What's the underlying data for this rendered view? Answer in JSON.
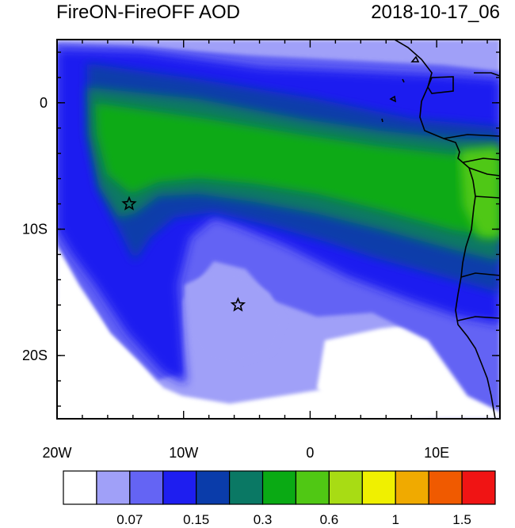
{
  "title_left": "FireON-FireOFF AOD",
  "title_right": "2018-10-17_06",
  "map": {
    "lon_range": [
      -20,
      15
    ],
    "lat_range": [
      -25,
      5
    ],
    "lon_ticks": [
      {
        "value": -20,
        "label": "20W"
      },
      {
        "value": -10,
        "label": "10W"
      },
      {
        "value": 0,
        "label": "0"
      },
      {
        "value": 10,
        "label": "10E"
      }
    ],
    "lat_ticks": [
      {
        "value": 0,
        "label": "0"
      },
      {
        "value": -10,
        "label": "10S"
      },
      {
        "value": -20,
        "label": "20S"
      }
    ],
    "markers": [
      {
        "name": "star-marker-north",
        "lon": -14.3,
        "lat": -8.0
      },
      {
        "name": "star-marker-south",
        "lon": -5.7,
        "lat": -16.0
      }
    ]
  },
  "colorbar": {
    "colors": [
      "#ffffff",
      "#a0a0f8",
      "#6464f4",
      "#1e1ef0",
      "#0a3caa",
      "#0a7864",
      "#0aaa14",
      "#50c814",
      "#a8dc14",
      "#f0f000",
      "#f0aa00",
      "#f05a00",
      "#f01414"
    ],
    "labels": [
      {
        "boundary": 2,
        "text": "0.07"
      },
      {
        "boundary": 4,
        "text": "0.15"
      },
      {
        "boundary": 6,
        "text": "0.3"
      },
      {
        "boundary": 8,
        "text": "0.6"
      },
      {
        "boundary": 10,
        "text": "1"
      },
      {
        "boundary": 12,
        "text": "1.5"
      }
    ]
  }
}
